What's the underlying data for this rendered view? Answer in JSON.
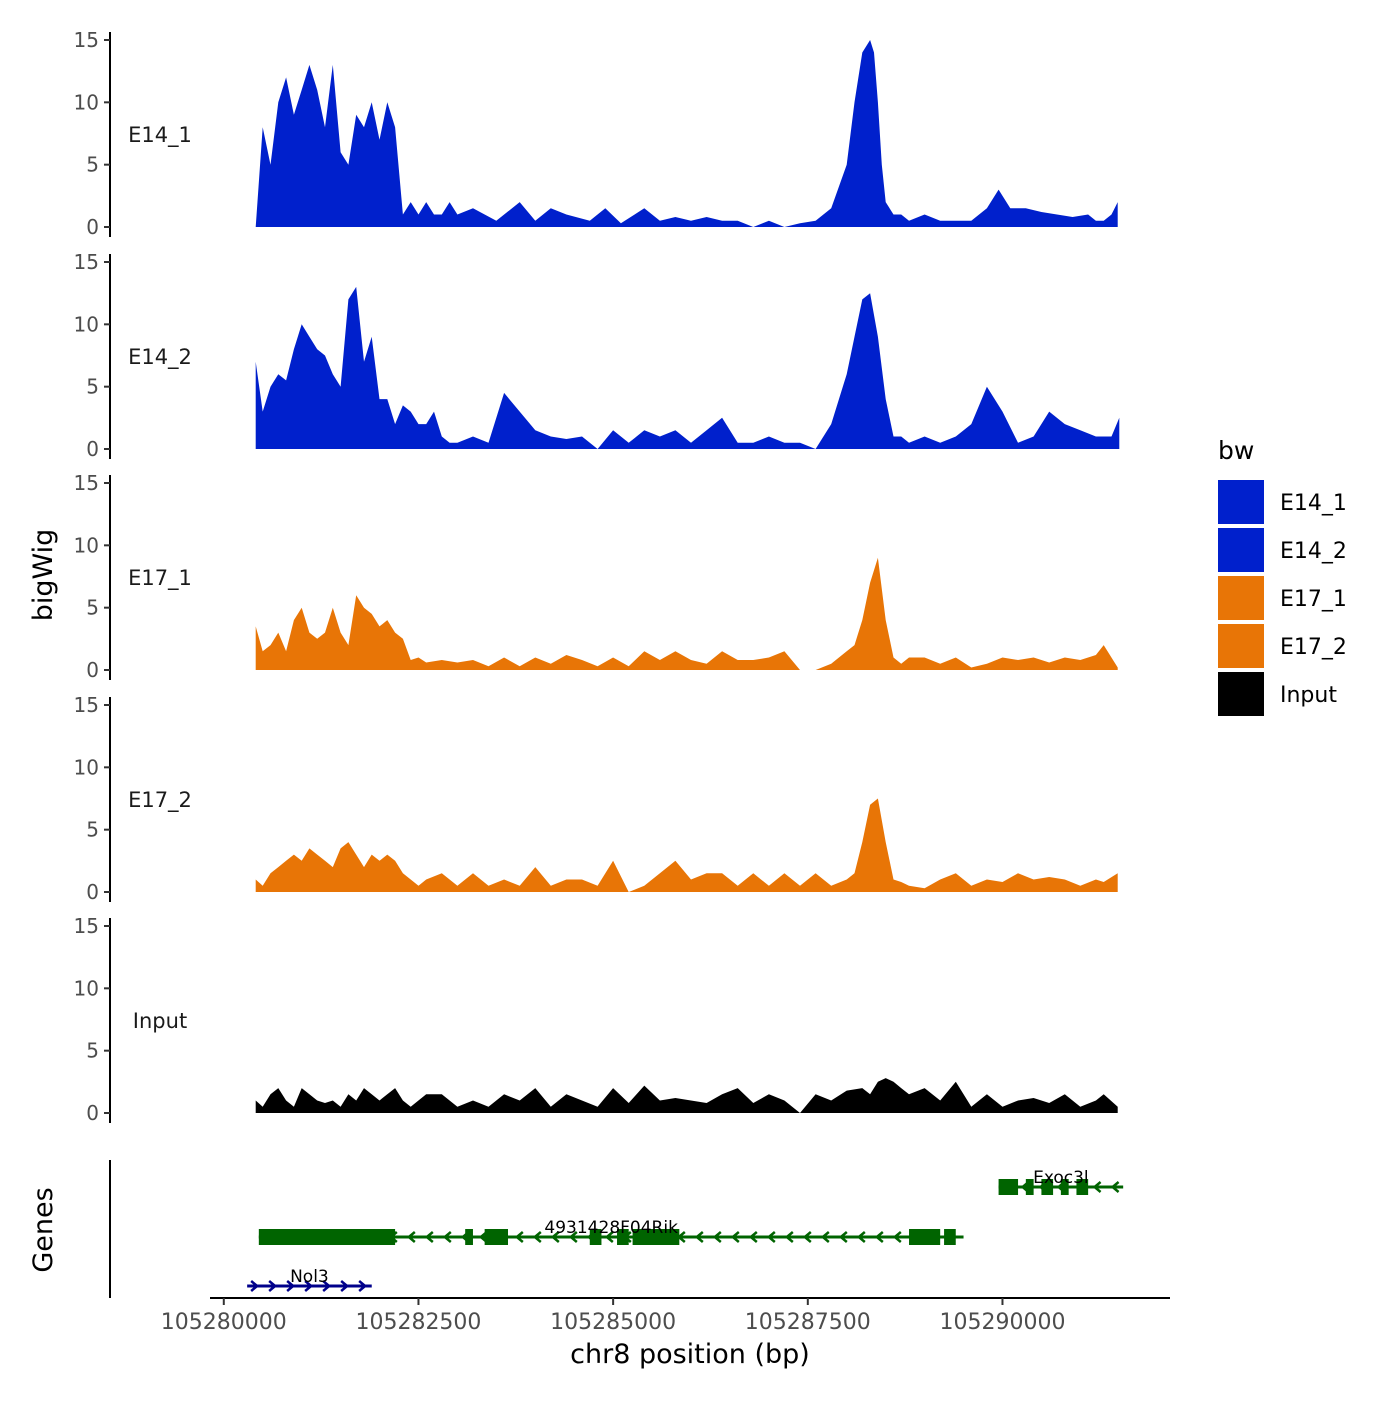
{
  "chart_data": {
    "type": "area",
    "xlabel": "chr8 position (bp)",
    "ylabel": "bigWig",
    "genes_label": "Genes",
    "xlim": [
      105279900,
      105292100
    ],
    "x_ticks": [
      {
        "value": 105280000,
        "label": "105280000"
      },
      {
        "value": 105282500,
        "label": "105282500"
      },
      {
        "value": 105285000,
        "label": "105285000"
      },
      {
        "value": 105287500,
        "label": "105287500"
      },
      {
        "value": 105290000,
        "label": "105290000"
      }
    ],
    "ylim": [
      0,
      15
    ],
    "y_ticks": [
      {
        "value": 0,
        "label": "0"
      },
      {
        "value": 5,
        "label": "5"
      },
      {
        "value": 10,
        "label": "10"
      },
      {
        "value": 15,
        "label": "15"
      }
    ],
    "legend": {
      "title": "bw",
      "entries": [
        {
          "label": "E14_1",
          "color": "#0020CC"
        },
        {
          "label": "E14_2",
          "color": "#0020CC"
        },
        {
          "label": "E17_1",
          "color": "#E87506"
        },
        {
          "label": "E17_2",
          "color": "#E87506"
        },
        {
          "label": "Input",
          "color": "#000000"
        }
      ]
    },
    "series": [
      {
        "name": "E14_1",
        "color": "#0020CC",
        "x": [
          105280410,
          105280500,
          105280600,
          105280700,
          105280800,
          105280900,
          105281000,
          105281100,
          105281200,
          105281300,
          105281400,
          105281500,
          105281600,
          105281700,
          105281800,
          105281900,
          105282000,
          105282100,
          105282200,
          105282300,
          105282400,
          105282500,
          105282600,
          105282700,
          105282800,
          105282900,
          105283000,
          105283200,
          105283500,
          105283800,
          105284000,
          105284200,
          105284400,
          105284700,
          105284900,
          105285100,
          105285400,
          105285600,
          105285800,
          105286000,
          105286200,
          105286400,
          105286600,
          105286800,
          105287000,
          105287200,
          105287400,
          105287600,
          105287800,
          105288000,
          105288100,
          105288200,
          105288300,
          105288350,
          105288400,
          105288450,
          105288500,
          105288600,
          105288700,
          105288800,
          105289000,
          105289200,
          105289400,
          105289600,
          105289800,
          105289950,
          105290100,
          105290300,
          105290500,
          105290700,
          105290900,
          105291100,
          105291200,
          105291300,
          105291400,
          105291480
        ],
        "y": [
          0,
          8,
          5,
          10,
          12,
          9,
          11,
          13,
          11,
          8,
          13,
          6,
          5,
          9,
          8,
          10,
          7,
          10,
          8,
          1,
          2,
          1,
          2,
          1,
          1,
          2,
          1,
          1.5,
          0.5,
          2,
          0.5,
          1.5,
          1,
          0.5,
          1.5,
          0.3,
          1.5,
          0.5,
          0.8,
          0.5,
          0.8,
          0.5,
          0.5,
          0,
          0.5,
          0,
          0.3,
          0.5,
          1.5,
          5,
          10,
          14,
          15,
          14,
          10,
          5,
          2,
          1,
          1,
          0.5,
          1,
          0.5,
          0.5,
          0.5,
          1.5,
          3,
          1.5,
          1.5,
          1.2,
          1,
          0.8,
          1,
          0.5,
          0.5,
          1,
          2
        ]
      },
      {
        "name": "E14_2",
        "color": "#0020CC",
        "x": [
          105280410,
          105280500,
          105280600,
          105280700,
          105280800,
          105280900,
          105281000,
          105281100,
          105281200,
          105281300,
          105281400,
          105281500,
          105281600,
          105281700,
          105281800,
          105281900,
          105282000,
          105282100,
          105282200,
          105282300,
          105282400,
          105282500,
          105282600,
          105282700,
          105282800,
          105282900,
          105283000,
          105283200,
          105283400,
          105283600,
          105283800,
          105284000,
          105284200,
          105284400,
          105284600,
          105284800,
          105285000,
          105285200,
          105285400,
          105285600,
          105285800,
          105286000,
          105286200,
          105286400,
          105286600,
          105286800,
          105287000,
          105287200,
          105287400,
          105287600,
          105287800,
          105288000,
          105288100,
          105288200,
          105288300,
          105288400,
          105288500,
          105288600,
          105288700,
          105288800,
          105289000,
          105289200,
          105289400,
          105289600,
          105289800,
          105290000,
          105290200,
          105290400,
          105290600,
          105290800,
          105291000,
          105291200,
          105291400,
          105291500
        ],
        "y": [
          7,
          3,
          5,
          6,
          5.5,
          8,
          10,
          9,
          8,
          7.5,
          6,
          5,
          12,
          13,
          7,
          9,
          4,
          4,
          2,
          3.5,
          3,
          2,
          2,
          3,
          1,
          0.5,
          0.5,
          1,
          0.5,
          4.5,
          3,
          1.5,
          1,
          0.8,
          1,
          0,
          1.5,
          0.5,
          1.5,
          1,
          1.5,
          0.5,
          1.5,
          2.5,
          0.5,
          0.5,
          1,
          0.5,
          0.5,
          0,
          2,
          6,
          9,
          12,
          12.5,
          9,
          4,
          1,
          1,
          0.5,
          1,
          0.5,
          1,
          2,
          5,
          3,
          0.5,
          1,
          3,
          2,
          1.5,
          1,
          1,
          2.5
        ]
      },
      {
        "name": "E17_1",
        "color": "#E87506",
        "x": [
          105280410,
          105280500,
          105280600,
          105280700,
          105280800,
          105280900,
          105281000,
          105281100,
          105281200,
          105281300,
          105281400,
          105281500,
          105281600,
          105281700,
          105281800,
          105281900,
          105282000,
          105282100,
          105282200,
          105282300,
          105282400,
          105282500,
          105282600,
          105282800,
          105283000,
          105283200,
          105283400,
          105283600,
          105283800,
          105284000,
          105284200,
          105284400,
          105284600,
          105284800,
          105285000,
          105285200,
          105285400,
          105285600,
          105285800,
          105286000,
          105286200,
          105286400,
          105286600,
          105286800,
          105287000,
          105287200,
          105287400,
          105287600,
          105287800,
          105288000,
          105288100,
          105288200,
          105288300,
          105288400,
          105288500,
          105288600,
          105288700,
          105288800,
          105289000,
          105289200,
          105289400,
          105289600,
          105289800,
          105290000,
          105290200,
          105290400,
          105290600,
          105290800,
          105291000,
          105291200,
          105291300,
          105291480
        ],
        "y": [
          3.5,
          1.5,
          2,
          3,
          1.5,
          4,
          5,
          3,
          2.5,
          3,
          5,
          3,
          2,
          6,
          5,
          4.5,
          3.5,
          4,
          3,
          2.5,
          0.8,
          1,
          0.6,
          0.8,
          0.6,
          0.8,
          0.3,
          1,
          0.3,
          1,
          0.5,
          1.2,
          0.8,
          0.3,
          1,
          0.3,
          1.5,
          0.8,
          1.5,
          0.8,
          0.5,
          1.5,
          0.8,
          0.8,
          1,
          1.5,
          0,
          0,
          0.5,
          1.5,
          2,
          4,
          7,
          9,
          4,
          1,
          0.5,
          1,
          1,
          0.5,
          1,
          0.2,
          0.5,
          1,
          0.8,
          1,
          0.6,
          1,
          0.8,
          1.2,
          2,
          0.2
        ]
      },
      {
        "name": "E17_2",
        "color": "#E87506",
        "x": [
          105280410,
          105280500,
          105280600,
          105280700,
          105280800,
          105280900,
          105281000,
          105281100,
          105281200,
          105281300,
          105281400,
          105281500,
          105281600,
          105281700,
          105281800,
          105281900,
          105282000,
          105282100,
          105282200,
          105282300,
          105282400,
          105282500,
          105282600,
          105282800,
          105283000,
          105283200,
          105283400,
          105283600,
          105283800,
          105284000,
          105284200,
          105284400,
          105284600,
          105284800,
          105285000,
          105285200,
          105285400,
          105285600,
          105285800,
          105286000,
          105286200,
          105286400,
          105286600,
          105286800,
          105287000,
          105287200,
          105287400,
          105287600,
          105287800,
          105288000,
          105288100,
          105288200,
          105288300,
          105288400,
          105288500,
          105288600,
          105288700,
          105288800,
          105289000,
          105289200,
          105289400,
          105289600,
          105289800,
          105290000,
          105290200,
          105290400,
          105290600,
          105290800,
          105291000,
          105291200,
          105291300,
          105291480
        ],
        "y": [
          1,
          0.5,
          1.5,
          2,
          2.5,
          3,
          2.5,
          3.5,
          3,
          2.5,
          2,
          3.5,
          4,
          3,
          2,
          3,
          2.5,
          3,
          2.5,
          1.5,
          1,
          0.5,
          1,
          1.5,
          0.5,
          1.5,
          0.5,
          1,
          0.5,
          2,
          0.5,
          1,
          1,
          0.5,
          2.5,
          0,
          0.5,
          1.5,
          2.5,
          1,
          1.5,
          1.5,
          0.5,
          1.5,
          0.5,
          1.5,
          0.5,
          1.5,
          0.5,
          1,
          1.5,
          4,
          7,
          7.5,
          4,
          1,
          0.8,
          0.5,
          0.3,
          1,
          1.5,
          0.5,
          1,
          0.8,
          1.5,
          1,
          1.2,
          1,
          0.5,
          1,
          0.8,
          1.5
        ]
      },
      {
        "name": "Input",
        "color": "#000000",
        "x": [
          105280410,
          105280500,
          105280600,
          105280700,
          105280800,
          105280900,
          105281000,
          105281100,
          105281200,
          105281300,
          105281400,
          105281500,
          105281600,
          105281700,
          105281800,
          105281900,
          105282000,
          105282100,
          105282200,
          105282300,
          105282400,
          105282600,
          105282800,
          105283000,
          105283200,
          105283400,
          105283600,
          105283800,
          105284000,
          105284200,
          105284400,
          105284600,
          105284800,
          105285000,
          105285200,
          105285400,
          105285600,
          105285800,
          105286000,
          105286200,
          105286400,
          105286600,
          105286800,
          105287000,
          105287200,
          105287400,
          105287600,
          105287800,
          105288000,
          105288200,
          105288300,
          105288400,
          105288500,
          105288600,
          105288700,
          105288800,
          105289000,
          105289200,
          105289400,
          105289600,
          105289800,
          105290000,
          105290200,
          105290400,
          105290600,
          105290800,
          105291000,
          105291200,
          105291300,
          105291480
        ],
        "y": [
          1,
          0.5,
          1.5,
          2,
          1,
          0.5,
          2,
          1.5,
          1,
          0.8,
          1,
          0.5,
          1.5,
          1,
          2,
          1.5,
          1,
          1.5,
          2,
          1,
          0.5,
          1.5,
          1.5,
          0.5,
          1,
          0.5,
          1.5,
          1,
          2,
          0.5,
          1.5,
          1,
          0.5,
          2,
          0.8,
          2.2,
          1,
          1.2,
          1,
          0.8,
          1.5,
          2,
          0.8,
          1.5,
          1,
          0,
          1.5,
          1,
          1.8,
          2,
          1.5,
          2.5,
          2.8,
          2.5,
          2,
          1.5,
          2,
          1,
          2.5,
          0.5,
          1.5,
          0.5,
          1,
          1.2,
          0.8,
          1.5,
          0.5,
          1,
          1.5,
          0.5
        ]
      }
    ],
    "genes": [
      {
        "name": "Nol3",
        "color": "#00008B",
        "strand": "+",
        "start": 105280300,
        "end": 105281900,
        "exons": []
      },
      {
        "name": "4931428F04Rik",
        "color": "#006400",
        "strand": "-",
        "start": 105280450,
        "end": 105289500,
        "exons": [
          [
            105280450,
            105282200
          ],
          [
            105283100,
            105283200
          ],
          [
            105283350,
            105283650
          ],
          [
            105284700,
            105284850
          ],
          [
            105285050,
            105285200
          ],
          [
            105285250,
            105285850
          ],
          [
            105288800,
            105289200
          ],
          [
            105289250,
            105289400
          ]
        ]
      },
      {
        "name": "Exoc3l",
        "color": "#006400",
        "strand": "-",
        "start": 105289950,
        "end": 105291550,
        "exons": [
          [
            105289950,
            105290200
          ],
          [
            105290300,
            105290400
          ],
          [
            105290500,
            105290650
          ],
          [
            105290750,
            105290850
          ],
          [
            105290950,
            105291100
          ]
        ]
      }
    ]
  }
}
